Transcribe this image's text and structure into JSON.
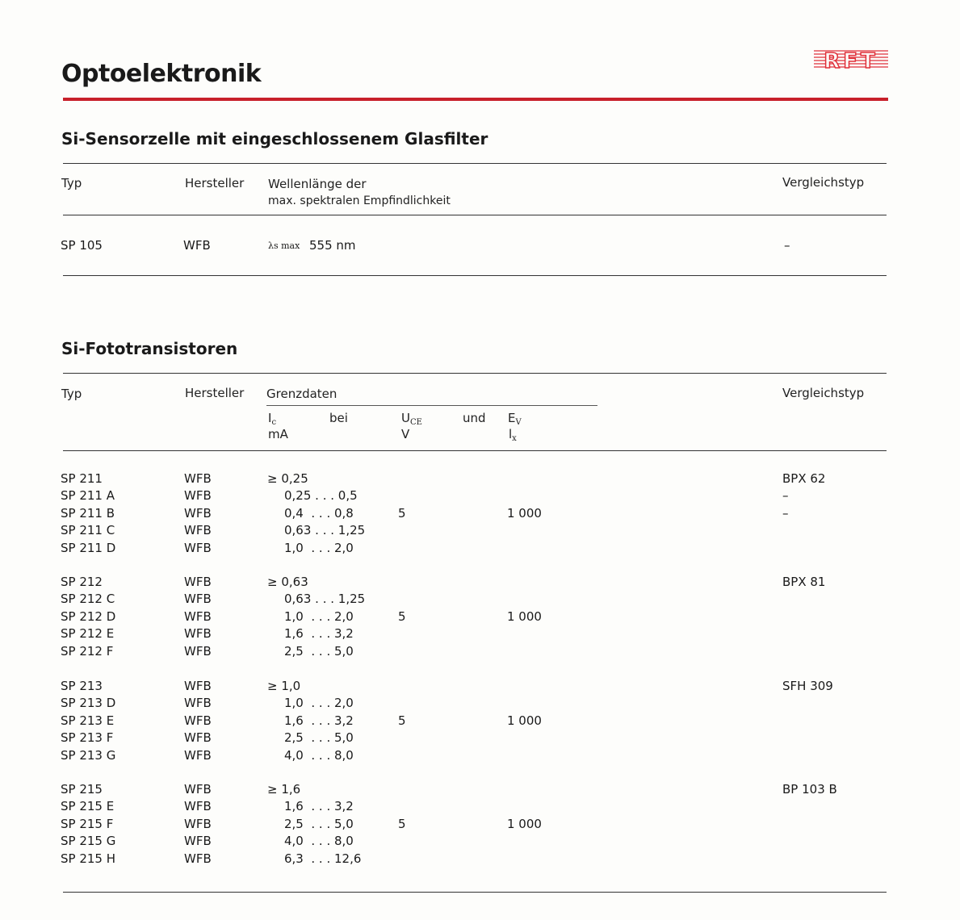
{
  "page_title": "Optoelektronik",
  "logo_text": "RFT",
  "colors": {
    "accent_red": "#c8202a",
    "logo_red": "#e0303a"
  },
  "section1": {
    "title": "Si-Sensorzelle mit eingeschlossenem Glasfilter",
    "headers": {
      "typ": "Typ",
      "hersteller": "Hersteller",
      "wellen_1": "Wellenlänge der",
      "wellen_2": "max. spektralen Empfindlichkeit",
      "vergleich": "Vergleichstyp"
    },
    "row": {
      "typ": "SP 105",
      "hersteller": "WFB",
      "lambda": "λs max",
      "value": "555 nm",
      "vergleich": "–"
    }
  },
  "section2": {
    "title": "Si-Fototransistoren",
    "headers": {
      "typ": "Typ",
      "hersteller": "Hersteller",
      "grenzdaten": "Grenzdaten",
      "ic": "I",
      "ic_sub": "c",
      "bei": "bei",
      "uce": "U",
      "uce_sub": "CE",
      "und": "und",
      "ev": "E",
      "ev_sub": "V",
      "ic_unit": "mA",
      "uce_unit": "V",
      "ev_unit": "l",
      "ev_unit_sub": "x",
      "vergleich": "Vergleichstyp"
    },
    "groups": [
      {
        "uce": "5",
        "ev": "1 000",
        "rows": [
          {
            "typ": "SP 211",
            "hersteller": "WFB",
            "ic": "≥ 0,25",
            "vergleich": "BPX 62"
          },
          {
            "typ": "SP 211 A",
            "hersteller": "WFB",
            "ic": "0,25 . . . 0,5",
            "vergleich": "–"
          },
          {
            "typ": "SP 211 B",
            "hersteller": "WFB",
            "ic": "0,4  . . . 0,8",
            "vergleich": "–"
          },
          {
            "typ": "SP 211 C",
            "hersteller": "WFB",
            "ic": "0,63 . . . 1,25",
            "vergleich": ""
          },
          {
            "typ": "SP 211 D",
            "hersteller": "WFB",
            "ic": "1,0  . . . 2,0",
            "vergleich": ""
          }
        ]
      },
      {
        "uce": "5",
        "ev": "1 000",
        "rows": [
          {
            "typ": "SP 212",
            "hersteller": "WFB",
            "ic": "≥ 0,63",
            "vergleich": "BPX 81"
          },
          {
            "typ": "SP 212 C",
            "hersteller": "WFB",
            "ic": "0,63 . . . 1,25",
            "vergleich": ""
          },
          {
            "typ": "SP 212 D",
            "hersteller": "WFB",
            "ic": "1,0  . . . 2,0",
            "vergleich": ""
          },
          {
            "typ": "SP 212 E",
            "hersteller": "WFB",
            "ic": "1,6  . . . 3,2",
            "vergleich": ""
          },
          {
            "typ": "SP 212 F",
            "hersteller": "WFB",
            "ic": "2,5  . . . 5,0",
            "vergleich": ""
          }
        ]
      },
      {
        "uce": "5",
        "ev": "1 000",
        "rows": [
          {
            "typ": "SP 213",
            "hersteller": "WFB",
            "ic": "≥ 1,0",
            "vergleich": "SFH 309"
          },
          {
            "typ": "SP 213 D",
            "hersteller": "WFB",
            "ic": "1,0  . . . 2,0",
            "vergleich": ""
          },
          {
            "typ": "SP 213 E",
            "hersteller": "WFB",
            "ic": "1,6  . . . 3,2",
            "vergleich": ""
          },
          {
            "typ": "SP 213 F",
            "hersteller": "WFB",
            "ic": "2,5  . . . 5,0",
            "vergleich": ""
          },
          {
            "typ": "SP 213 G",
            "hersteller": "WFB",
            "ic": "4,0  . . . 8,0",
            "vergleich": ""
          }
        ]
      },
      {
        "uce": "5",
        "ev": "1 000",
        "rows": [
          {
            "typ": "SP 215",
            "hersteller": "WFB",
            "ic": "≥ 1,6",
            "vergleich": "BP 103 B"
          },
          {
            "typ": "SP 215 E",
            "hersteller": "WFB",
            "ic": "1,6  . . . 3,2",
            "vergleich": ""
          },
          {
            "typ": "SP 215 F",
            "hersteller": "WFB",
            "ic": "2,5  . . . 5,0",
            "vergleich": ""
          },
          {
            "typ": "SP 215 G",
            "hersteller": "WFB",
            "ic": "4,0  . . . 8,0",
            "vergleich": ""
          },
          {
            "typ": "SP 215 H",
            "hersteller": "WFB",
            "ic": "6,3  . . . 12,6",
            "vergleich": ""
          }
        ]
      }
    ]
  }
}
